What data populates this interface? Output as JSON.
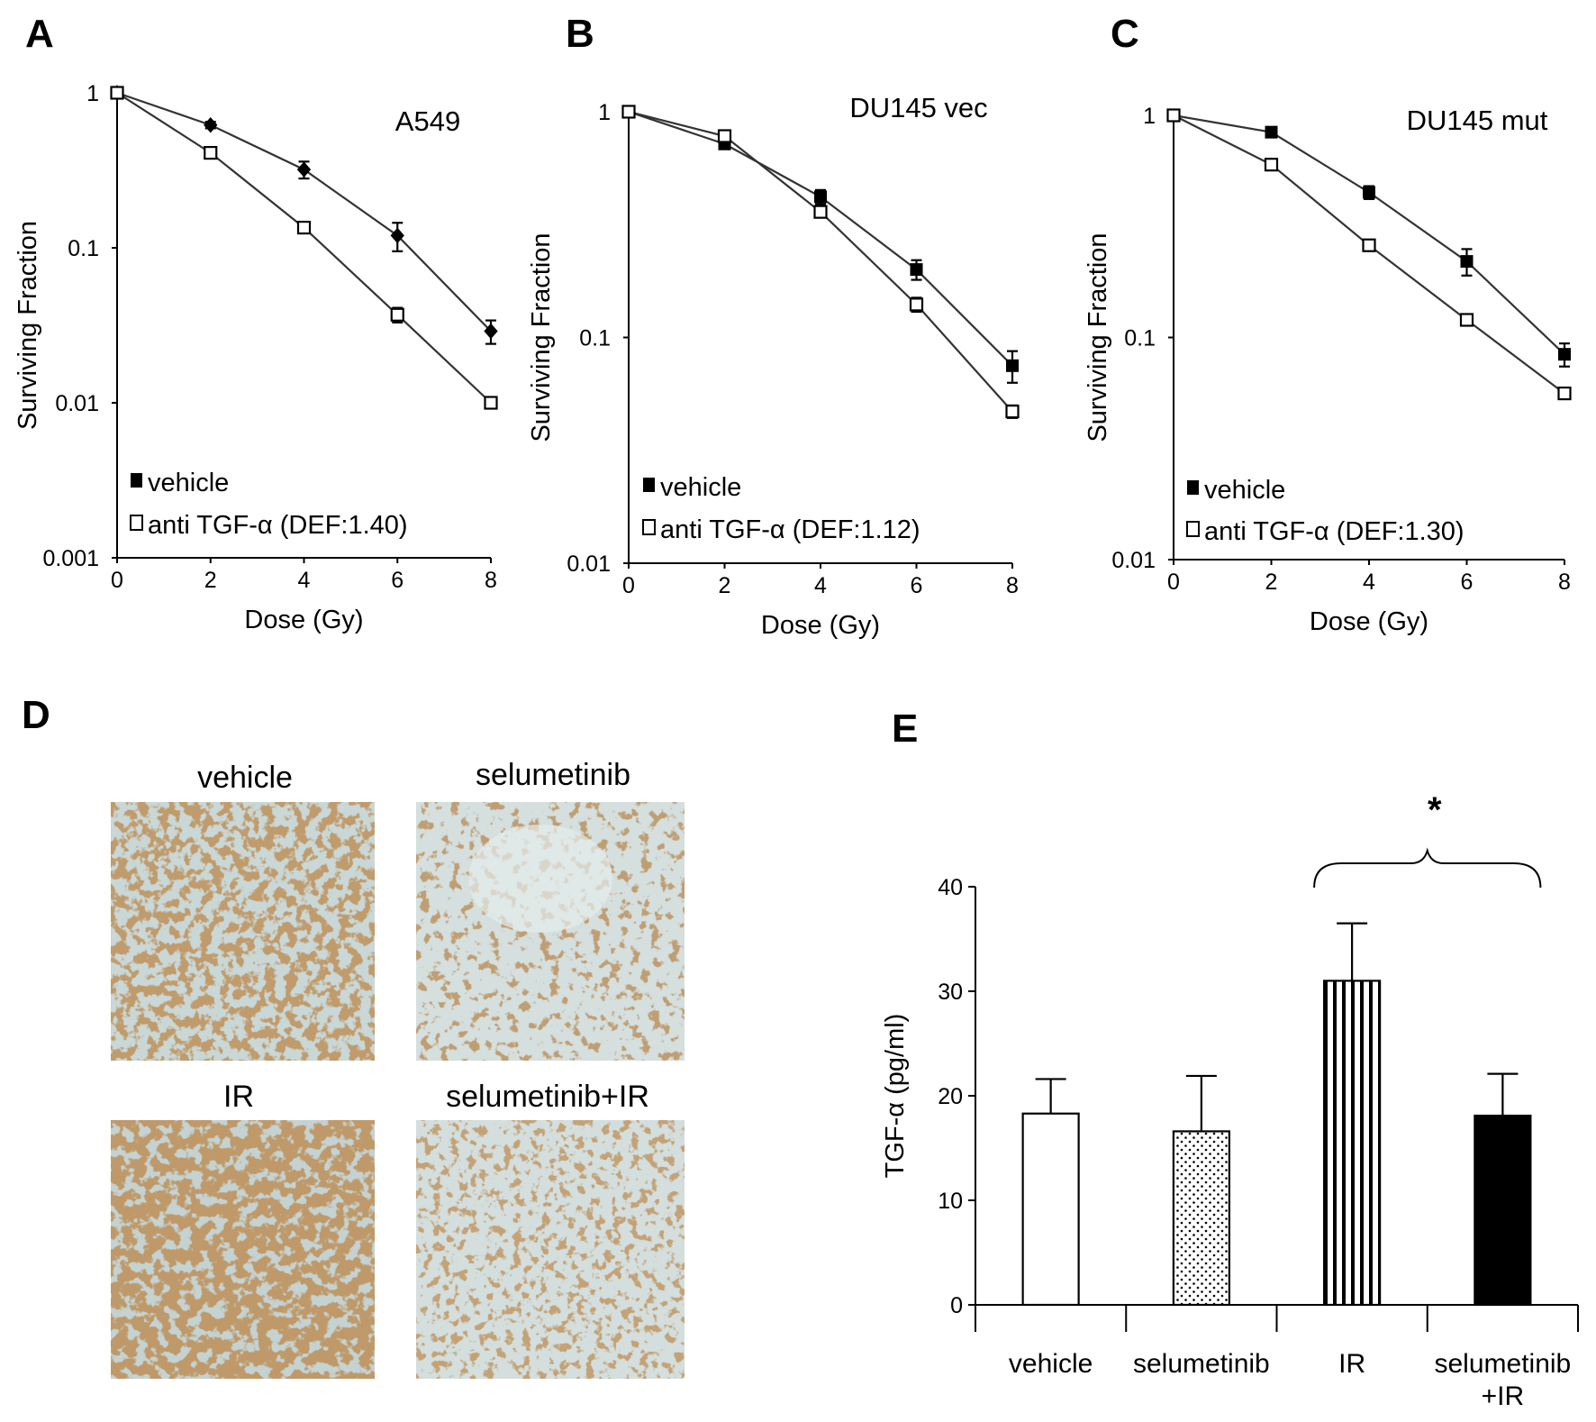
{
  "panel_letters": {
    "A": "A",
    "B": "B",
    "C": "C",
    "D": "D",
    "E": "E"
  },
  "colors": {
    "ihc_stain": "#8a5a2e",
    "ihc_background": "#c9d7d6"
  },
  "chart_data": [
    {
      "id": "A",
      "type": "line",
      "scale": "log",
      "title": "A549",
      "xlabel": "Dose (Gy)",
      "ylabel": "Surviving Fraction",
      "xlim": [
        0,
        8
      ],
      "ylim": [
        0.001,
        1
      ],
      "x_ticks": [
        "0",
        "2",
        "4",
        "6",
        "8"
      ],
      "y_ticks": [
        {
          "v": 1,
          "label": "1"
        },
        {
          "v": 0.1,
          "label": "0.1"
        },
        {
          "v": 0.01,
          "label": "0.01"
        },
        {
          "v": 0.001,
          "label": "0.001"
        }
      ],
      "x": [
        0,
        2,
        4,
        6,
        8
      ],
      "series": [
        {
          "name": "vehicle",
          "marker": "filled-diamond",
          "values": [
            1,
            0.62,
            0.32,
            0.12,
            0.029
          ],
          "errors": [
            0,
            0.03,
            0.04,
            0.025,
            0.005
          ]
        },
        {
          "name": "anti TGF-α (DEF:1.40)",
          "marker": "open-square",
          "values": [
            1,
            0.41,
            0.135,
            0.037,
            0.01
          ],
          "errors": [
            0,
            0.02,
            0.01,
            0.004,
            0.0008
          ]
        }
      ]
    },
    {
      "id": "B",
      "type": "line",
      "scale": "log",
      "title": "DU145 vec",
      "xlabel": "Dose (Gy)",
      "ylabel": "Surviving Fraction",
      "xlim": [
        0,
        8
      ],
      "ylim": [
        0.01,
        1
      ],
      "x_ticks": [
        "0",
        "2",
        "4",
        "6",
        "8"
      ],
      "y_ticks": [
        {
          "v": 1,
          "label": "1"
        },
        {
          "v": 0.1,
          "label": "0.1"
        },
        {
          "v": 0.01,
          "label": "0.01"
        }
      ],
      "x": [
        0,
        2,
        4,
        6,
        8
      ],
      "series": [
        {
          "name": "vehicle",
          "marker": "filled-square",
          "values": [
            1,
            0.72,
            0.42,
            0.2,
            0.075
          ],
          "errors": [
            0,
            0.03,
            0.03,
            0.02,
            0.012
          ]
        },
        {
          "name": "anti TGF-α (DEF:1.12)",
          "marker": "open-square",
          "values": [
            1,
            0.78,
            0.36,
            0.14,
            0.047
          ],
          "errors": [
            0,
            0.03,
            0.02,
            0.01,
            0.003
          ]
        }
      ]
    },
    {
      "id": "C",
      "type": "line",
      "scale": "log",
      "title": "DU145 mut",
      "xlabel": "Dose (Gy)",
      "ylabel": "Surviving Fraction",
      "xlim": [
        0,
        8
      ],
      "ylim": [
        0.01,
        1
      ],
      "x_ticks": [
        "0",
        "2",
        "4",
        "6",
        "8"
      ],
      "y_ticks": [
        {
          "v": 1,
          "label": "1"
        },
        {
          "v": 0.1,
          "label": "0.1"
        },
        {
          "v": 0.01,
          "label": "0.01"
        }
      ],
      "x": [
        0,
        2,
        4,
        6,
        8
      ],
      "series": [
        {
          "name": "vehicle",
          "marker": "filled-square",
          "values": [
            1,
            0.84,
            0.45,
            0.22,
            0.084
          ],
          "errors": [
            0,
            0.03,
            0.03,
            0.03,
            0.01
          ]
        },
        {
          "name": "anti TGF-α (DEF:1.30)",
          "marker": "open-square",
          "values": [
            1,
            0.6,
            0.26,
            0.12,
            0.056
          ],
          "errors": [
            0,
            0.02,
            0.01,
            0.006,
            0.003
          ]
        }
      ]
    },
    {
      "id": "E",
      "type": "bar",
      "ylabel": "TGF-α  (pg/ml)",
      "ylim": [
        0,
        40
      ],
      "y_ticks": [
        "0",
        "10",
        "20",
        "30",
        "40"
      ],
      "categories": [
        "vehicle",
        "selumetinib",
        "IR",
        "selumetinib\n+IR"
      ],
      "values": [
        18.3,
        16.6,
        31.0,
        18.1
      ],
      "errors": [
        3.3,
        5.3,
        5.5,
        4.0
      ],
      "fills": [
        "white",
        "dotted",
        "vertical-stripes",
        "black"
      ],
      "significance": {
        "label": "*",
        "between": [
          "IR",
          "selumetinib\n+IR"
        ]
      }
    }
  ],
  "panel_D": {
    "images": [
      {
        "label": "vehicle",
        "density": "high"
      },
      {
        "label": "selumetinib",
        "density": "medium-low"
      },
      {
        "label": "IR",
        "density": "very-high"
      },
      {
        "label": "selumetinib+IR",
        "density": "low"
      }
    ]
  }
}
